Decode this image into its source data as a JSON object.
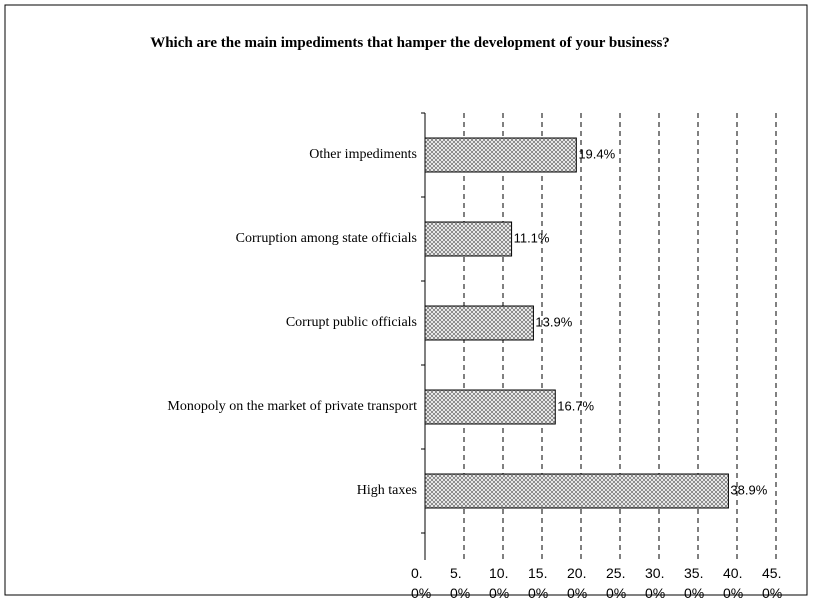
{
  "chart_data": {
    "type": "bar",
    "orientation": "horizontal",
    "title": "Which are the main impediments that hamper the development of your business?",
    "categories": [
      "Other impediments",
      "Corruption among state officials",
      "Corrupt public officials",
      "Monopoly on the market of private transport",
      "High taxes"
    ],
    "values": [
      19.4,
      11.1,
      13.9,
      16.7,
      38.9
    ],
    "value_labels": [
      "19.4%",
      "11.1%",
      "13.9%",
      "16.7%",
      "38.9%"
    ],
    "color": "#c8c8c8",
    "xlim": [
      0,
      45
    ],
    "xticks": [
      {
        "value": 0,
        "label": "0.0%"
      },
      {
        "value": 5,
        "label": "5.0%"
      },
      {
        "value": 10,
        "label": "10.0%"
      },
      {
        "value": 15,
        "label": "15.0%"
      },
      {
        "value": 20,
        "label": "20.0%"
      },
      {
        "value": 25,
        "label": "25.0%"
      },
      {
        "value": 30,
        "label": "30.0%"
      },
      {
        "value": 35,
        "label": "35.0%"
      },
      {
        "value": 40,
        "label": "40.0%"
      },
      {
        "value": 45,
        "label": "45.0%"
      }
    ],
    "grid": true
  }
}
